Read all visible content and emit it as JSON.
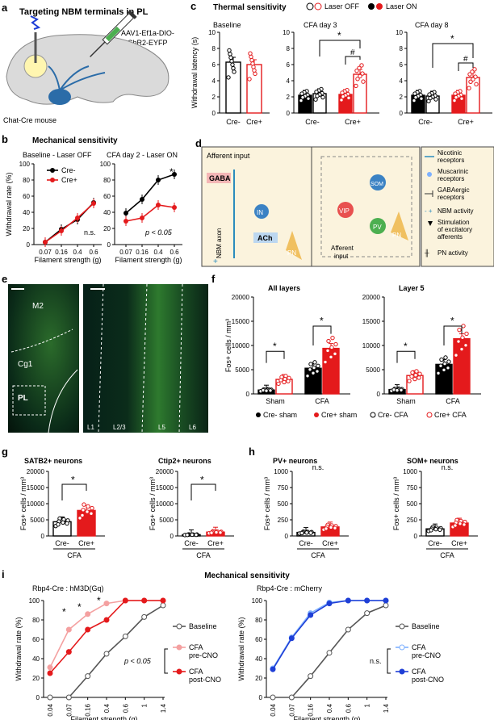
{
  "panel_labels": {
    "a": "a",
    "b": "b",
    "c": "c",
    "d": "d",
    "e": "e",
    "f": "f",
    "g": "g",
    "h": "h",
    "i": "i"
  },
  "colors": {
    "red": "#e41a1c",
    "pink": "#f4a0a0",
    "blue": "#1f3fd6",
    "lightblue": "#7db0ff",
    "gray": "#555555",
    "green_fluor": "#3fbf3f",
    "cream": "#fbf3dd"
  },
  "panel_a": {
    "title": "Targeting NBM terminals in PL",
    "virus": "AAV1-Ef1a-DIO-ChR2-EYFP",
    "mouse": "Chat-Cre mouse"
  },
  "panel_b": {
    "title": "Mechanical sensitivity",
    "left_subtitle": "Baseline - Laser OFF",
    "right_subtitle": "CFA day 2 - Laser ON",
    "ylabel": "Withdrawal rate (%)",
    "xlabel": "Filament strength (g)",
    "xticks": [
      "0.07",
      "0.16",
      "0.4",
      "0.6"
    ],
    "yticks": [
      "0",
      "20",
      "40",
      "60",
      "80",
      "100"
    ],
    "legend": [
      "Cre-",
      "Cre+"
    ],
    "left_stat": "n.s.",
    "right_stat": "p < 0.05",
    "right_star": "*"
  },
  "panel_c": {
    "title": "Thermal sensitivity",
    "legend_off": "Laser OFF",
    "legend_on": "Laser ON",
    "ylabel": "Withdrawal latency (s)",
    "yticks": [
      "0",
      "2",
      "4",
      "6",
      "8",
      "10"
    ],
    "sub_baseline": "Baseline",
    "sub_day3": "CFA day 3",
    "sub_day8": "CFA day 8",
    "groups": [
      "Cre-",
      "Cre+"
    ],
    "star": "*",
    "hash": "#"
  },
  "panel_d": {
    "afferent": "Afferent input",
    "gaba": "GABA",
    "ach": "ACh",
    "in": "IN",
    "pn": "PN",
    "nbm_axon": "NBM axon",
    "vip": "VIP",
    "som": "SOM",
    "pv": "PV",
    "afferent_input_2": "Afferent\ninput",
    "legend": [
      "Nicotinic receptors",
      "Muscarinic receptors",
      "GABAergic receptors",
      "NBM activity",
      "Stimulation of excitatory afferents",
      "PN activity"
    ]
  },
  "panel_e": {
    "m2": "M2",
    "cg1": "Cg1",
    "pl": "PL",
    "layers": [
      "L1",
      "L2/3",
      "L5",
      "L6"
    ]
  },
  "panel_f": {
    "ylabel": "Fos+ cells / mm³",
    "yticks": [
      "0",
      "5000",
      "10000",
      "15000",
      "20000"
    ],
    "sub_all": "All layers",
    "sub_l5": "Layer 5",
    "groups": [
      "Sham",
      "CFA"
    ],
    "legend": [
      "Cre- sham",
      "Cre+ sham",
      "Cre- CFA",
      "Cre+ CFA"
    ],
    "star": "*"
  },
  "panel_g": {
    "sub_satb2": "SATB2+ neurons",
    "sub_ctip2": "Ctip2+ neurons",
    "ylabel": "Fos+ cells / mm³",
    "yticks": [
      "0",
      "5000",
      "10000",
      "15000",
      "20000"
    ],
    "groups": [
      "Cre-",
      "Cre+"
    ],
    "cfa": "CFA",
    "star": "*"
  },
  "panel_h": {
    "sub_pv": "PV+ neurons",
    "sub_som": "SOM+ neurons",
    "ylabel": "Fos+ cells / mm³",
    "yticks": [
      "0",
      "250",
      "500",
      "750",
      "1000"
    ],
    "groups": [
      "Cre-",
      "Cre+"
    ],
    "cfa": "CFA",
    "ns": "n.s."
  },
  "panel_i": {
    "title": "Mechanical sensitivity",
    "left_subtitle": "Rbp4-Cre : hM3D(Gq)",
    "right_subtitle": "Rbp4-Cre : mCherry",
    "ylabel": "Withdrawal rate (%)",
    "xlabel": "Filament strength (g)",
    "xticks": [
      "0.04",
      "0.07",
      "0.16",
      "0.4",
      "0.6",
      "1",
      "1.4"
    ],
    "yticks": [
      "0",
      "20",
      "40",
      "60",
      "80",
      "100"
    ],
    "left_legend": [
      "Baseline",
      "CFA\npre-CNO",
      "CFA\npost-CNO"
    ],
    "right_legend": [
      "Baseline",
      "CFA\npre-CNO",
      "CFA\npost-CNO"
    ],
    "left_stat": "p < 0.05",
    "right_stat": "n.s.",
    "star": "*"
  },
  "chart_data": [
    {
      "type": "line",
      "title": "Baseline - Laser OFF",
      "xlabel": "Filament strength (g)",
      "ylabel": "Withdrawal rate (%)",
      "categories": [
        "0.07",
        "0.16",
        "0.4",
        "0.6"
      ],
      "ylim": [
        0,
        100
      ],
      "series": [
        {
          "name": "Cre-",
          "values": [
            3,
            19,
            31,
            52
          ]
        },
        {
          "name": "Cre+",
          "values": [
            3,
            17,
            33,
            51
          ]
        }
      ]
    },
    {
      "type": "line",
      "title": "CFA day 2 - Laser ON",
      "xlabel": "Filament strength (g)",
      "ylabel": "Withdrawal rate (%)",
      "categories": [
        "0.07",
        "0.16",
        "0.4",
        "0.6"
      ],
      "ylim": [
        0,
        100
      ],
      "series": [
        {
          "name": "Cre-",
          "values": [
            39,
            56,
            80,
            87
          ]
        },
        {
          "name": "Cre+",
          "values": [
            29,
            33,
            49,
            46
          ]
        }
      ]
    },
    {
      "type": "bar",
      "title": "Baseline",
      "ylabel": "Withdrawal latency (s)",
      "ylim": [
        0,
        10
      ],
      "categories": [
        "Cre-",
        "Cre+"
      ],
      "values": [
        6.3,
        6.0
      ]
    },
    {
      "type": "bar",
      "title": "CFA day 3",
      "ylabel": "Withdrawal latency (s)",
      "ylim": [
        0,
        10
      ],
      "categories": [
        "Cre- Laser OFF",
        "Cre- Laser ON",
        "Cre+ Laser OFF",
        "Cre+ Laser ON"
      ],
      "values": [
        2.2,
        2.4,
        2.3,
        4.8
      ]
    },
    {
      "type": "bar",
      "title": "CFA day 8",
      "ylabel": "Withdrawal latency (s)",
      "ylim": [
        0,
        10
      ],
      "categories": [
        "Cre- Laser OFF",
        "Cre- Laser ON",
        "Cre+ Laser OFF",
        "Cre+ Laser ON"
      ],
      "values": [
        2.2,
        2.1,
        2.2,
        4.4
      ]
    },
    {
      "type": "bar",
      "title": "All layers",
      "ylabel": "Fos+ cells / mm³",
      "ylim": [
        0,
        20000
      ],
      "categories": [
        "Cre- sham",
        "Cre+ sham",
        "Cre- CFA",
        "Cre+ CFA"
      ],
      "values": [
        800,
        3000,
        5300,
        9400
      ]
    },
    {
      "type": "bar",
      "title": "Layer 5",
      "ylabel": "Fos+ cells / mm³",
      "ylim": [
        0,
        20000
      ],
      "categories": [
        "Cre- sham",
        "Cre+ sham",
        "Cre- CFA",
        "Cre+ CFA"
      ],
      "values": [
        900,
        3800,
        6100,
        11400
      ]
    },
    {
      "type": "bar",
      "title": "SATB2+ neurons",
      "ylabel": "Fos+ cells / mm³",
      "ylim": [
        0,
        20000
      ],
      "categories": [
        "Cre-",
        "Cre+"
      ],
      "values": [
        4400,
        7900
      ]
    },
    {
      "type": "bar",
      "title": "Ctip2+ neurons",
      "ylabel": "Fos+ cells / mm³",
      "ylim": [
        0,
        20000
      ],
      "categories": [
        "Cre-",
        "Cre+"
      ],
      "values": [
        400,
        1200
      ]
    },
    {
      "type": "bar",
      "title": "PV+ neurons",
      "ylabel": "Fos+ cells / mm³",
      "ylim": [
        0,
        1000
      ],
      "categories": [
        "Cre-",
        "Cre+"
      ],
      "values": [
        55,
        140
      ]
    },
    {
      "type": "bar",
      "title": "SOM+ neurons",
      "ylabel": "Fos+ cells / mm³",
      "ylim": [
        0,
        1000
      ],
      "categories": [
        "Cre-",
        "Cre+"
      ],
      "values": [
        110,
        200
      ]
    },
    {
      "type": "line",
      "title": "Rbp4-Cre : hM3D(Gq)",
      "xlabel": "Filament strength (g)",
      "ylabel": "Withdrawal rate (%)",
      "categories": [
        "0.04",
        "0.07",
        "0.16",
        "0.4",
        "0.6",
        "1",
        "1.4"
      ],
      "ylim": [
        0,
        100
      ],
      "series": [
        {
          "name": "Baseline",
          "values": [
            0,
            0,
            22,
            45,
            63,
            83,
            95
          ]
        },
        {
          "name": "CFA pre-CNO",
          "values": [
            31,
            70,
            86,
            97,
            100,
            100,
            100
          ]
        },
        {
          "name": "CFA post-CNO",
          "values": [
            25,
            47,
            70,
            80,
            100,
            100,
            100
          ]
        }
      ]
    },
    {
      "type": "line",
      "title": "Rbp4-Cre : mCherry",
      "xlabel": "Filament strength (g)",
      "ylabel": "Withdrawal rate (%)",
      "categories": [
        "0.04",
        "0.07",
        "0.16",
        "0.4",
        "0.6",
        "1",
        "1.4"
      ],
      "ylim": [
        0,
        100
      ],
      "series": [
        {
          "name": "Baseline",
          "values": [
            0,
            0,
            22,
            46,
            70,
            87,
            95
          ]
        },
        {
          "name": "CFA pre-CNO",
          "values": [
            30,
            62,
            87,
            98,
            100,
            100,
            100
          ]
        },
        {
          "name": "CFA post-CNO",
          "values": [
            29,
            61,
            85,
            97,
            100,
            100,
            100
          ]
        }
      ]
    }
  ]
}
